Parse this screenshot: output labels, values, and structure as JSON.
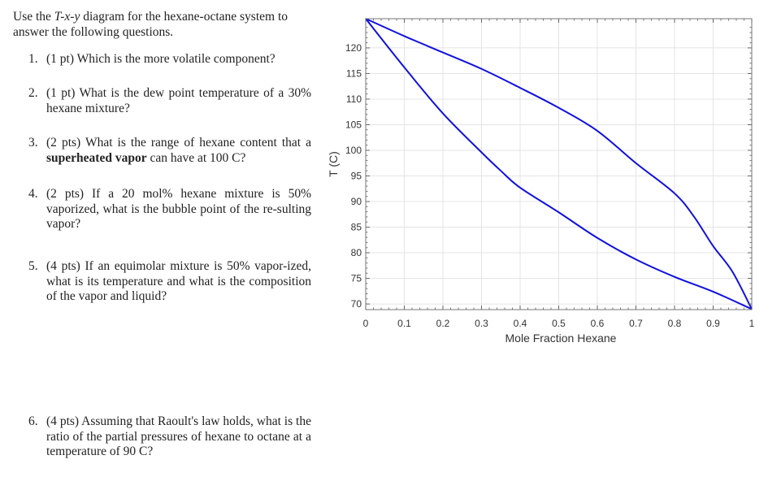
{
  "intro": {
    "pre": "Use the ",
    "italic": "T-x-y",
    "post": " diagram for the hexane-octane system to answer the following questions."
  },
  "questions": [
    {
      "num": "1.",
      "pre": "(1 pt) Which is the more volatile component?",
      "bold": "",
      "post": ""
    },
    {
      "num": "2.",
      "pre": "(1 pt) What is the dew point temperature of a 30% hexane mixture?",
      "bold": "",
      "post": ""
    },
    {
      "num": "3.",
      "pre": "(2 pts) What is the range of hexane content that a ",
      "bold": "superheated vapor",
      "post": " can have at 100 C?"
    },
    {
      "num": "4.",
      "pre": "(2 pts) If a 20 mol% hexane mixture is 50% vaporized, what is the bubble point of the re-sulting vapor?",
      "bold": "",
      "post": ""
    },
    {
      "num": "5.",
      "pre": "(4 pts) If an equimolar mixture is 50% vapor-ized, what is its temperature and what is the composition of the vapor and liquid?",
      "bold": "",
      "post": ""
    },
    {
      "num": "6.",
      "pre": "(4 pts) Assuming that Raoult's law holds, what is the ratio of the partial pressures of hexane to octane at a temperature of 90 C?",
      "bold": "",
      "post": ""
    }
  ],
  "chart_data": {
    "type": "line",
    "title": "",
    "xlabel": "Mole Fraction Hexane",
    "ylabel": "T (C)",
    "xlim": [
      0,
      1
    ],
    "ylim": [
      68.9,
      125.7
    ],
    "xticks": [
      "0",
      "0.1",
      "0.2",
      "0.3",
      "0.4",
      "0.5",
      "0.6",
      "0.7",
      "0.8",
      "0.9",
      "1"
    ],
    "yticks": [
      "70",
      "75",
      "80",
      "85",
      "90",
      "95",
      "100",
      "105",
      "110",
      "115",
      "120"
    ],
    "grid": true,
    "line_color": "#1010e0",
    "series": [
      {
        "x": [
          0,
          0.1,
          0.2,
          0.3,
          0.35,
          0.4,
          0.5,
          0.6,
          0.7,
          0.8,
          0.9,
          1
        ],
        "y": [
          125.7,
          116.2,
          107.2,
          99.6,
          96.0,
          92.7,
          87.9,
          82.9,
          78.7,
          75.3,
          72.4,
          69.0
        ]
      },
      {
        "x": [
          0,
          0.1,
          0.2,
          0.3,
          0.4,
          0.5,
          0.6,
          0.7,
          0.8,
          0.85,
          0.9,
          0.95,
          1
        ],
        "y": [
          125.7,
          122.3,
          119.1,
          115.9,
          112.2,
          108.3,
          103.8,
          97.5,
          91.6,
          87.1,
          81.3,
          76.3,
          69.0
        ]
      }
    ]
  }
}
